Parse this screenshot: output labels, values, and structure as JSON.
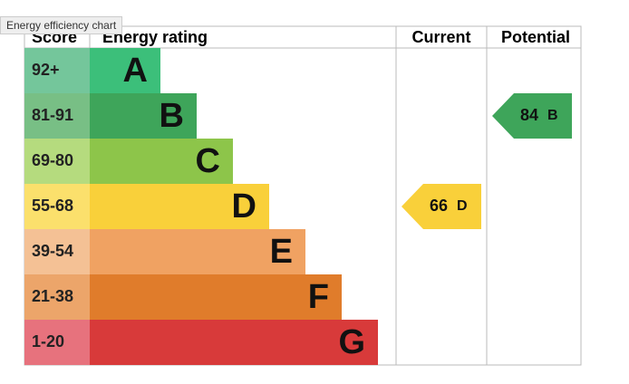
{
  "tooltip": "Energy efficiency chart",
  "chart_data": {
    "type": "epc",
    "headers": {
      "score": "Score",
      "rating": "Energy rating",
      "current": "Current",
      "potential": "Potential"
    },
    "bands": [
      {
        "score": "92+",
        "rating": "A",
        "color": "#3cbf7a",
        "score_color": "#74c69b"
      },
      {
        "score": "81-91",
        "rating": "B",
        "color": "#3ea55a",
        "score_color": "#78bf85"
      },
      {
        "score": "69-80",
        "rating": "C",
        "color": "#8dc54a",
        "score_color": "#b5db7e"
      },
      {
        "score": "55-68",
        "rating": "D",
        "color": "#f9d03a",
        "score_color": "#fbe06c"
      },
      {
        "score": "39-54",
        "rating": "E",
        "color": "#f0a262",
        "score_color": "#f4c195"
      },
      {
        "score": "21-38",
        "rating": "F",
        "color": "#e07c2b",
        "score_color": "#eca56a"
      },
      {
        "score": "1-20",
        "rating": "G",
        "color": "#d83a3a",
        "score_color": "#e7727d"
      }
    ],
    "current": {
      "value": 66,
      "rating": "D"
    },
    "potential": {
      "value": 84,
      "rating": "B"
    }
  }
}
